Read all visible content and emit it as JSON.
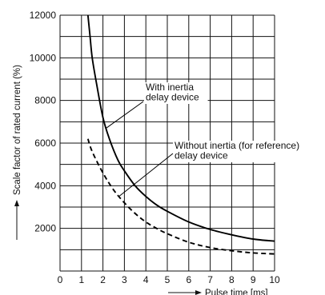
{
  "chart_data": {
    "type": "line",
    "xlabel": "Pulse time [ms]",
    "ylabel": "Scale factor of rated current (%)",
    "xlim": [
      0,
      10
    ],
    "ylim": [
      0,
      12000
    ],
    "x_ticks": [
      "0",
      "1",
      "2",
      "3",
      "4",
      "5",
      "6",
      "7",
      "8",
      "9",
      "10"
    ],
    "y_ticks": [
      "2000",
      "4000",
      "6000",
      "8000",
      "10000",
      "12000"
    ],
    "grid": true,
    "series": [
      {
        "name": "With inertia delay device",
        "style": "solid",
        "x": [
          1.3,
          1.4,
          1.5,
          1.7,
          2.0,
          2.3,
          2.7,
          3.0,
          3.5,
          4.0,
          4.5,
          5.0,
          6.0,
          7.0,
          8.0,
          9.0,
          10.0
        ],
        "y": [
          12000,
          11000,
          10000,
          8800,
          7200,
          6200,
          5200,
          4700,
          4000,
          3500,
          3100,
          2800,
          2300,
          1950,
          1700,
          1500,
          1400
        ]
      },
      {
        "name": "Without inertia (for reference) delay device",
        "style": "dashed",
        "x": [
          1.3,
          1.5,
          2.0,
          2.5,
          3.0,
          3.5,
          4.0,
          4.5,
          5.0,
          6.0,
          7.0,
          8.0,
          9.0,
          10.0
        ],
        "y": [
          6200,
          5600,
          4600,
          3800,
          3200,
          2700,
          2300,
          2000,
          1750,
          1350,
          1100,
          950,
          850,
          800
        ]
      }
    ],
    "annotations": [
      {
        "text_lines": [
          "With inertia",
          "delay device"
        ],
        "series": 0,
        "point_x": 2.15
      },
      {
        "text_lines": [
          "Without inertia (for reference)",
          "delay device"
        ],
        "series": 1,
        "point_x": 2.75
      }
    ]
  }
}
